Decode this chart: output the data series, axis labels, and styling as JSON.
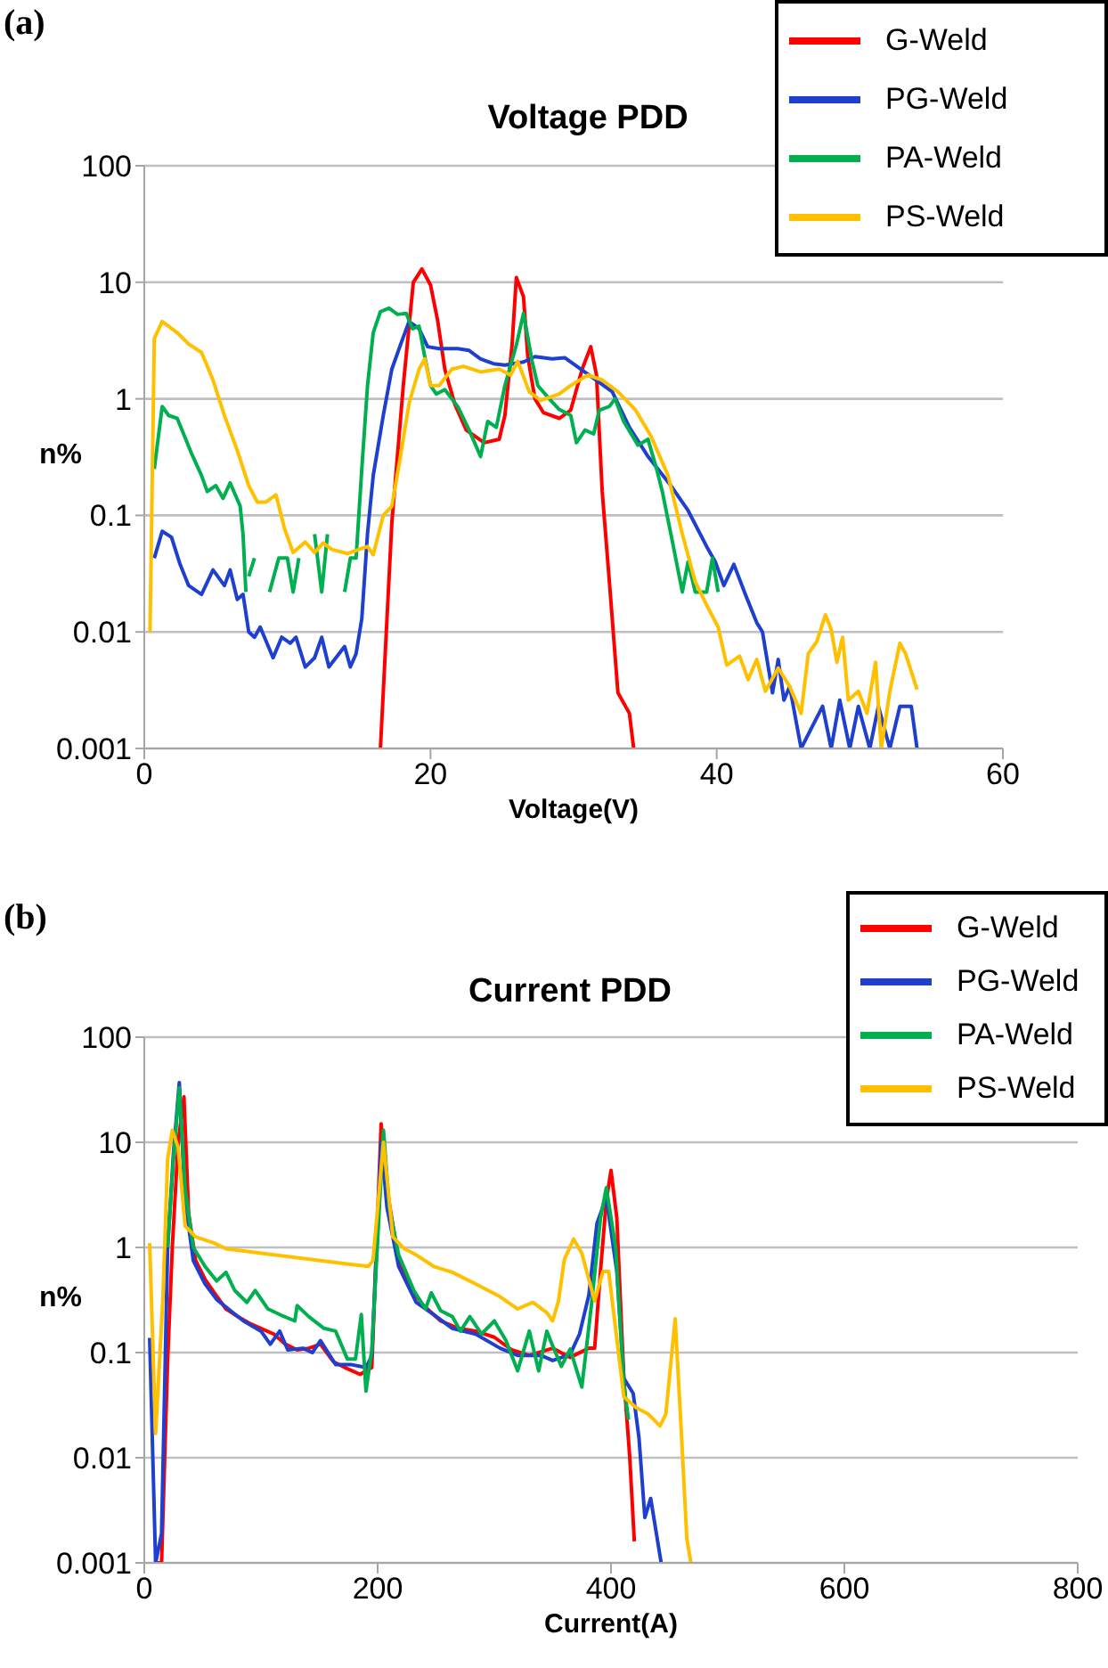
{
  "chart_data": [
    {
      "type": "line",
      "title": "Voltage PDD",
      "xlabel": "Voltage(V)",
      "ylabel": "n%",
      "annotations": [
        "(a)"
      ],
      "xlim": [
        0,
        60
      ],
      "xticks": [
        0,
        20,
        40,
        60
      ],
      "ylim": [
        0.001,
        100
      ],
      "yticks": [
        0.001,
        0.01,
        0.1,
        1,
        10,
        100
      ],
      "log": "y",
      "grid": "y",
      "legend": "top right",
      "series": [
        {
          "name": "G-Weld",
          "color": "#ff0000",
          "x": [
            16.5,
            17.3,
            18.1,
            18.8,
            19.4,
            20,
            20.5,
            21,
            21.7,
            22.5,
            23.75,
            24.8,
            25.2,
            25.7,
            26,
            26.5,
            26.8,
            27.3,
            27.9,
            29,
            29.8,
            30.6,
            31.2,
            31.6,
            32,
            32.5,
            33.1,
            33.9,
            34.2
          ],
          "values": [
            0.001,
            0.087,
            1.3,
            10,
            13,
            9.5,
            4.7,
            1.8,
            0.9,
            0.54,
            0.42,
            0.45,
            0.72,
            2.9,
            11,
            7.5,
            2.3,
            1.0,
            0.76,
            0.68,
            0.8,
            1.8,
            2.8,
            1.6,
            0.16,
            0.027,
            0.003,
            0.002,
            0.001
          ]
        },
        {
          "name": "PG-Weld",
          "color": "#1f3fcf",
          "x": [
            0.7,
            1.25,
            1.9,
            2.5,
            3.1,
            4,
            4.8,
            5.6,
            6,
            6.5,
            6.9,
            7.3,
            7.7,
            8.1,
            9,
            9.6,
            10.2,
            10.6,
            11.25,
            11.9,
            12.4,
            12.9,
            14,
            14.4,
            14.8,
            15.2,
            15.6,
            16,
            16.7,
            17.3,
            17.9,
            18.5,
            19.2,
            19.8,
            20.6,
            21.9,
            22.7,
            23.5,
            24.4,
            25.2,
            26.5,
            27.3,
            28.5,
            29.4,
            31.4,
            32.7,
            33.9,
            35.2,
            36.8,
            38,
            39.3,
            39.9,
            40.5,
            41.2,
            42,
            42.8,
            43.2,
            43.9,
            44.3,
            44.7,
            45.1,
            45.9,
            47.4,
            48,
            48.6,
            49.3,
            49.9,
            50.7,
            51.3,
            52.1,
            52.8,
            53.6,
            54
          ],
          "values": [
            0.043,
            0.073,
            0.065,
            0.038,
            0.025,
            0.021,
            0.034,
            0.025,
            0.034,
            0.019,
            0.021,
            0.01,
            0.009,
            0.011,
            0.006,
            0.009,
            0.008,
            0.009,
            0.005,
            0.006,
            0.009,
            0.005,
            0.0075,
            0.005,
            0.0065,
            0.013,
            0.07,
            0.22,
            0.72,
            1.8,
            2.9,
            4.6,
            4.0,
            2.8,
            2.7,
            2.7,
            2.6,
            2.2,
            2.0,
            1.95,
            2.07,
            2.3,
            2.2,
            2.25,
            1.5,
            1.15,
            0.57,
            0.32,
            0.18,
            0.11,
            0.054,
            0.04,
            0.025,
            0.038,
            0.021,
            0.012,
            0.01,
            0.003,
            0.0058,
            0.0026,
            0.0034,
            0.001,
            0.0023,
            0.001,
            0.0026,
            0.001,
            0.0023,
            0.001,
            0.0023,
            0.001,
            0.0023,
            0.0023,
            0.001
          ]
        },
        {
          "name": "PA-Weld",
          "color": "#00b050",
          "x": [
            0.7,
            1.25,
            1.7,
            2.3,
            2.9,
            3.3,
            4,
            4.4,
            5,
            5.5,
            6,
            6.7,
            6.9,
            7.1,
            7.2,
            7.3,
            7.7,
            8.2,
            8.75,
            9.4,
            10,
            10.4,
            10.8,
            11.3,
            11.9,
            12.4,
            12.8,
            13.4,
            14,
            14.4,
            14.8,
            15.2,
            15.6,
            16,
            16.5,
            17.1,
            17.7,
            18.3,
            18.75,
            19.2,
            19.6,
            20,
            20.4,
            21,
            21.9,
            22.7,
            23.5,
            24,
            24.6,
            25.2,
            26,
            26.5,
            27.1,
            27.5,
            28.3,
            29,
            29.8,
            30.2,
            30.8,
            31.4,
            31.8,
            32.5,
            32.9,
            33.5,
            34.5,
            35.2,
            35.8,
            36.2,
            36.8,
            37.6,
            38,
            38.5,
            39.3,
            39.7,
            40.1
          ],
          "values": [
            0.25,
            0.86,
            0.72,
            0.68,
            0.45,
            0.34,
            0.22,
            0.16,
            0.18,
            0.14,
            0.19,
            0.12,
            0.069,
            0.022,
            null,
            0.03,
            0.043,
            null,
            0.022,
            0.043,
            0.043,
            0.022,
            0.043,
            null,
            0.069,
            0.022,
            0.069,
            null,
            0.022,
            0.043,
            0.043,
            0.25,
            1.3,
            3.7,
            5.6,
            6,
            5.3,
            5.4,
            4,
            4.2,
            2.3,
            1.3,
            1.1,
            1.2,
            0.86,
            0.54,
            0.32,
            0.64,
            0.57,
            1.3,
            2.9,
            5.4,
            2.1,
            1.3,
            1.0,
            0.81,
            0.72,
            0.42,
            0.54,
            0.5,
            0.8,
            0.86,
            1.0,
            0.64,
            0.4,
            0.45,
            0.25,
            0.16,
            0.069,
            0.022,
            0.04,
            0.022,
            0.022,
            0.043,
            0.022
          ]
        },
        {
          "name": "PS-Weld",
          "color": "#ffc000",
          "x": [
            0.4,
            0.7,
            1.25,
            2.3,
            3.1,
            4,
            4.8,
            5.6,
            6.5,
            7.3,
            7.9,
            8.5,
            9.2,
            9.8,
            10.4,
            11.25,
            11.9,
            12.5,
            13.1,
            14.2,
            15,
            15.6,
            16,
            16.7,
            17.3,
            17.9,
            18.5,
            19.2,
            19.6,
            20,
            20.6,
            21.5,
            22.3,
            23.5,
            24.8,
            25.6,
            26.1,
            26.9,
            27.7,
            29,
            29.8,
            31,
            32,
            33.1,
            34.3,
            35.4,
            36.6,
            37.6,
            38.5,
            39.3,
            40.1,
            40.7,
            41.6,
            42.2,
            42.8,
            43.4,
            44.3,
            45.1,
            45.9,
            46.4,
            47,
            47.6,
            48,
            48.4,
            48.8,
            49.2,
            49.9,
            50.5,
            51.1,
            51.5,
            52.1,
            52.8,
            53.2,
            54
          ],
          "values": [
            0.01,
            3.3,
            4.6,
            3.7,
            2.95,
            2.5,
            1.45,
            0.72,
            0.36,
            0.18,
            0.13,
            0.13,
            0.15,
            0.077,
            0.048,
            0.059,
            0.048,
            0.058,
            0.051,
            0.047,
            0.051,
            0.054,
            0.046,
            0.1,
            0.12,
            0.32,
            0.91,
            1.8,
            2.2,
            1.3,
            1.3,
            1.8,
            1.9,
            1.7,
            1.8,
            1.6,
            2.1,
            1.15,
            0.97,
            1.1,
            1.3,
            1.6,
            1.45,
            1.15,
            0.81,
            0.48,
            0.22,
            0.069,
            0.027,
            0.017,
            0.011,
            0.0052,
            0.0062,
            0.0039,
            0.0058,
            0.0031,
            0.0049,
            0.0034,
            0.002,
            0.0065,
            0.0083,
            0.014,
            0.0105,
            0.0055,
            0.009,
            0.0026,
            0.0031,
            0.002,
            0.0055,
            0.001,
            0.0031,
            0.008,
            0.0065,
            0.0032
          ]
        }
      ]
    },
    {
      "type": "line",
      "title": "Current PDD",
      "xlabel": "Current(A)",
      "ylabel": "n%",
      "annotations": [
        "(b)"
      ],
      "xlim": [
        0,
        800
      ],
      "xticks": [
        0,
        200,
        400,
        600,
        800
      ],
      "ylim": [
        0.001,
        100
      ],
      "yticks": [
        0.001,
        0.01,
        0.1,
        1,
        10,
        100
      ],
      "log": "y",
      "grid": "y",
      "legend": "top right",
      "series": [
        {
          "name": "G-Weld",
          "color": "#ff0000",
          "x": [
            9.7,
            14.8,
            20,
            24,
            29,
            34,
            38,
            44,
            52,
            60,
            70,
            80,
            90,
            100,
            111,
            121,
            131,
            141,
            151,
            162,
            172,
            185,
            195,
            203,
            208,
            218,
            228,
            238,
            254,
            269,
            284,
            300,
            315,
            330,
            350,
            365,
            381,
            386,
            391,
            396,
            400,
            405,
            411,
            416,
            420
          ],
          "values": [
            0.001,
            0.001,
            0.082,
            1,
            10,
            27,
            2.1,
            0.75,
            0.5,
            0.37,
            0.26,
            0.22,
            0.19,
            0.17,
            0.15,
            0.12,
            0.106,
            0.11,
            0.12,
            0.082,
            0.072,
            0.062,
            0.072,
            15,
            3.6,
            0.75,
            0.42,
            0.29,
            0.2,
            0.17,
            0.16,
            0.14,
            0.106,
            0.094,
            0.11,
            0.09,
            0.11,
            0.11,
            0.6,
            2.8,
            5.4,
            1.9,
            0.057,
            0.0104,
            0.0016
          ]
        },
        {
          "name": "PG-Weld",
          "color": "#1f3fcf",
          "x": [
            4.6,
            9.7,
            14.8,
            20,
            25,
            30,
            35,
            42,
            52,
            62,
            72,
            85,
            100,
            108,
            116,
            123,
            136,
            144,
            151,
            164,
            177,
            190,
            195,
            203,
            208,
            218,
            233,
            248,
            264,
            284,
            305,
            320,
            340,
            350,
            365,
            373,
            381,
            388,
            396,
            405,
            411,
            419,
            424,
            429,
            434,
            443
          ],
          "values": [
            0.138,
            0.001,
            0.0019,
            1,
            7.9,
            37,
            2.8,
            0.75,
            0.45,
            0.32,
            0.26,
            0.2,
            0.16,
            0.12,
            0.16,
            0.106,
            0.11,
            0.1,
            0.13,
            0.077,
            0.077,
            0.072,
            0.093,
            10,
            2.4,
            0.66,
            0.3,
            0.23,
            0.17,
            0.15,
            0.11,
            0.094,
            0.094,
            0.084,
            0.096,
            0.15,
            0.35,
            1.7,
            3.0,
            0.59,
            0.057,
            0.041,
            0.0154,
            0.0027,
            0.0041,
            0.001
          ]
        },
        {
          "name": "PA-Weld",
          "color": "#00b050",
          "x": [
            20,
            25,
            30,
            35,
            42,
            52,
            62,
            70,
            77.5,
            88,
            95,
            106,
            116,
            129,
            131,
            141,
            154,
            164,
            174,
            181,
            186,
            190,
            195,
            205,
            210,
            218,
            231,
            241,
            246,
            254,
            264,
            271,
            279,
            289,
            300,
            310,
            320,
            330,
            338,
            345,
            350,
            357.5,
            365,
            375,
            383,
            391,
            396,
            404,
            411,
            415
          ],
          "values": [
            1,
            6.9,
            33,
            3.6,
            1,
            0.66,
            0.48,
            0.58,
            0.39,
            0.3,
            0.39,
            0.26,
            0.23,
            0.2,
            0.28,
            0.22,
            0.17,
            0.16,
            0.087,
            0.087,
            0.23,
            0.043,
            0.106,
            13,
            2.4,
            0.85,
            0.39,
            0.26,
            0.37,
            0.25,
            0.22,
            0.16,
            0.22,
            0.15,
            0.2,
            0.13,
            0.067,
            0.16,
            0.067,
            0.16,
            0.116,
            0.074,
            0.108,
            0.047,
            0.27,
            1.9,
            3.7,
            1.0,
            0.05,
            0.023
          ]
        },
        {
          "name": "PS-Weld",
          "color": "#ffc000",
          "x": [
            4.6,
            9.7,
            16,
            20,
            24,
            29,
            35,
            44,
            60,
            70,
            90,
            111,
            131,
            151,
            172,
            192,
            196,
            205,
            213,
            223,
            233,
            248,
            264,
            284,
            305,
            320,
            333,
            345,
            350,
            355,
            360,
            368,
            375,
            386,
            393,
            398,
            411,
            421.5,
            432,
            442,
            447,
            455,
            460,
            465,
            468.5
          ],
          "values": [
            1.1,
            0.017,
            0.34,
            6.9,
            13,
            9,
            1.6,
            1.26,
            1.1,
            0.97,
            0.91,
            0.85,
            0.8,
            0.75,
            0.7,
            0.66,
            0.75,
            10,
            1.26,
            0.97,
            0.85,
            0.66,
            0.58,
            0.45,
            0.34,
            0.26,
            0.3,
            0.24,
            0.2,
            0.31,
            0.77,
            1.2,
            0.88,
            0.31,
            0.59,
            0.59,
            0.038,
            0.03,
            0.026,
            0.02,
            0.026,
            0.21,
            0.02,
            0.0017,
            0.001
          ]
        }
      ]
    }
  ]
}
